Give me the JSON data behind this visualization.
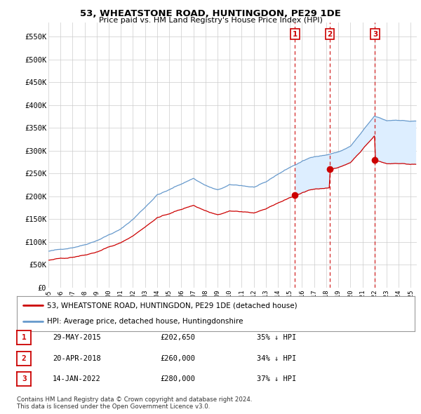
{
  "title": "53, WHEATSTONE ROAD, HUNTINGDON, PE29 1DE",
  "subtitle": "Price paid vs. HM Land Registry's House Price Index (HPI)",
  "ylabel_ticks": [
    "£0",
    "£50K",
    "£100K",
    "£150K",
    "£200K",
    "£250K",
    "£300K",
    "£350K",
    "£400K",
    "£450K",
    "£500K",
    "£550K"
  ],
  "ytick_values": [
    0,
    50000,
    100000,
    150000,
    200000,
    250000,
    300000,
    350000,
    400000,
    450000,
    500000,
    550000
  ],
  "ylim": [
    0,
    580000
  ],
  "xlim_start": 1995.0,
  "xlim_end": 2025.5,
  "sale_dates": [
    2015.41,
    2018.3,
    2022.04
  ],
  "sale_prices": [
    202650,
    260000,
    280000
  ],
  "sale_labels": [
    "1",
    "2",
    "3"
  ],
  "sale_info": [
    {
      "label": "1",
      "date": "29-MAY-2015",
      "price": "£202,650",
      "pct": "35% ↓ HPI"
    },
    {
      "label": "2",
      "date": "20-APR-2018",
      "price": "£260,000",
      "pct": "34% ↓ HPI"
    },
    {
      "label": "3",
      "date": "14-JAN-2022",
      "price": "£280,000",
      "pct": "37% ↓ HPI"
    }
  ],
  "legend_entries": [
    {
      "label": "53, WHEATSTONE ROAD, HUNTINGDON, PE29 1DE (detached house)",
      "color": "#cc0000"
    },
    {
      "label": "HPI: Average price, detached house, Huntingdonshire",
      "color": "#6699cc"
    }
  ],
  "footnote": "Contains HM Land Registry data © Crown copyright and database right 2024.\nThis data is licensed under the Open Government Licence v3.0.",
  "background_color": "#ffffff",
  "plot_bg_color": "#ffffff",
  "grid_color": "#cccccc",
  "vline_color": "#cc0000",
  "shade_color": "#ddeeff",
  "hpi_color": "#6699cc",
  "sale_color": "#cc0000"
}
